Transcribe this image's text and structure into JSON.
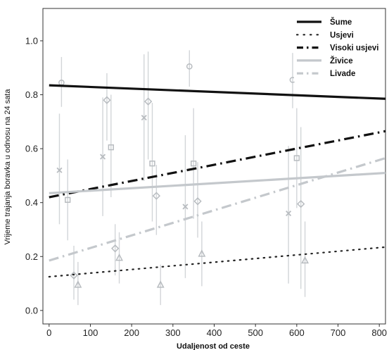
{
  "chart_data": {
    "type": "scatter",
    "title": "",
    "xlabel": "Udaljenost od ceste",
    "ylabel": "Vrijeme trajanja boravka u odnosu na 24 sata",
    "xlim": [
      -15,
      815
    ],
    "ylim": [
      -0.05,
      1.12
    ],
    "x_ticks": [
      0,
      100,
      200,
      300,
      400,
      500,
      600,
      700,
      800
    ],
    "y_ticks": [
      0.0,
      0.2,
      0.4,
      0.6,
      0.8,
      1.0
    ],
    "x_tick_labels": [
      "0",
      "100",
      "200",
      "300",
      "400",
      "500",
      "600",
      "700",
      "800"
    ],
    "y_tick_labels": [
      "0.0",
      "0.2",
      "0.4",
      "0.6",
      "0.8",
      "1.0"
    ],
    "grid": false,
    "legend_position": "top-right",
    "series": [
      {
        "name": "Šume",
        "style": "solid",
        "color": "#111111",
        "width": 3.2,
        "line": {
          "x": [
            0,
            815
          ],
          "y": [
            0.835,
            0.785
          ]
        },
        "marker": "circle",
        "points": [
          {
            "x": 30,
            "y": 0.845,
            "lo": 0.755,
            "hi": 0.94
          },
          {
            "x": 340,
            "y": 0.905,
            "lo": 0.83,
            "hi": 0.965
          },
          {
            "x": 590,
            "y": 0.855,
            "lo": 0.75,
            "hi": 0.955
          }
        ]
      },
      {
        "name": "Usjevi",
        "style": "dotted",
        "color": "#222222",
        "width": 2.2,
        "line": {
          "x": [
            0,
            815
          ],
          "y": [
            0.125,
            0.235
          ]
        },
        "marker": "triangle",
        "points": [
          {
            "x": 70,
            "y": 0.095,
            "lo": 0.02,
            "hi": 0.18
          },
          {
            "x": 170,
            "y": 0.195,
            "lo": 0.1,
            "hi": 0.29
          },
          {
            "x": 270,
            "y": 0.095,
            "lo": 0.02,
            "hi": 0.17
          },
          {
            "x": 370,
            "y": 0.21,
            "lo": 0.09,
            "hi": 0.33
          },
          {
            "x": 620,
            "y": 0.185,
            "lo": 0.05,
            "hi": 0.33
          }
        ]
      },
      {
        "name": "Visoki usjevi",
        "style": "dashdot",
        "color": "#111111",
        "width": 3.2,
        "line": {
          "x": [
            0,
            815
          ],
          "y": [
            0.42,
            0.665
          ]
        },
        "marker": "cross",
        "points": [
          {
            "x": 25,
            "y": 0.52,
            "lo": 0.32,
            "hi": 0.73
          },
          {
            "x": 130,
            "y": 0.57,
            "lo": 0.35,
            "hi": 0.79
          },
          {
            "x": 230,
            "y": 0.715,
            "lo": 0.48,
            "hi": 0.95
          },
          {
            "x": 330,
            "y": 0.385,
            "lo": 0.12,
            "hi": 0.65
          },
          {
            "x": 580,
            "y": 0.36,
            "lo": 0.1,
            "hi": 0.61
          }
        ]
      },
      {
        "name": "Živice",
        "style": "solid",
        "color": "#c4c8cc",
        "width": 3.2,
        "line": {
          "x": [
            0,
            815
          ],
          "y": [
            0.435,
            0.51
          ]
        },
        "marker": "square",
        "points": [
          {
            "x": 45,
            "y": 0.41,
            "lo": 0.26,
            "hi": 0.56
          },
          {
            "x": 150,
            "y": 0.605,
            "lo": 0.42,
            "hi": 0.8
          },
          {
            "x": 250,
            "y": 0.545,
            "lo": 0.33,
            "hi": 0.77
          },
          {
            "x": 350,
            "y": 0.545,
            "lo": 0.34,
            "hi": 0.75
          },
          {
            "x": 600,
            "y": 0.565,
            "lo": 0.38,
            "hi": 0.75
          }
        ]
      },
      {
        "name": "Livade",
        "style": "dashdot",
        "color": "#c4c8cc",
        "width": 3.2,
        "line": {
          "x": [
            0,
            815
          ],
          "y": [
            0.185,
            0.565
          ]
        },
        "marker": "diamond",
        "points": [
          {
            "x": 60,
            "y": 0.13,
            "lo": 0.04,
            "hi": 0.24
          },
          {
            "x": 140,
            "y": 0.78,
            "lo": 0.63,
            "hi": 0.88
          },
          {
            "x": 160,
            "y": 0.23,
            "lo": 0.13,
            "hi": 0.32
          },
          {
            "x": 240,
            "y": 0.775,
            "lo": 0.56,
            "hi": 0.96
          },
          {
            "x": 260,
            "y": 0.425,
            "lo": 0.28,
            "hi": 0.54
          },
          {
            "x": 360,
            "y": 0.405,
            "lo": 0.27,
            "hi": 0.55
          },
          {
            "x": 610,
            "y": 0.395,
            "lo": 0.08,
            "hi": 0.68
          }
        ]
      }
    ]
  }
}
